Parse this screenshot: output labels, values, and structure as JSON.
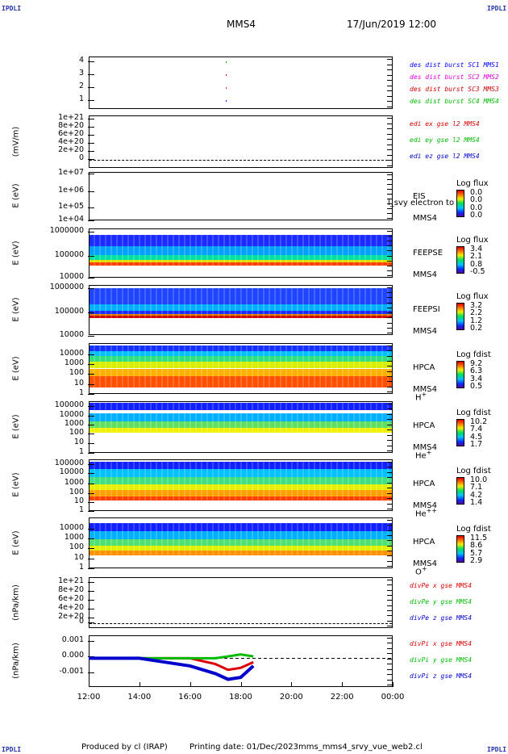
{
  "corner_label": "IPDLI",
  "header": {
    "spacecraft": "MMS4",
    "datetime": "17/Jun/2019 12:00"
  },
  "colors": {
    "mms1": "#0000ff",
    "mms2": "#e000e0",
    "mms3": "#cc0000",
    "mms4": "#00bb00",
    "x": "#dd0000",
    "y": "#00bb00",
    "z": "#0000cc"
  },
  "panels": [
    {
      "id": "burst",
      "ylabel": "",
      "ticks": [
        "4",
        "3",
        "2",
        "1"
      ],
      "legend": [
        "des dist burst SC1 MMS1",
        "des dist burst SC2 MMS2",
        "des dist burst SC3 MMS3",
        "des dist burst SC4 MMS4"
      ]
    },
    {
      "id": "edi",
      "ylabel": "(mV/m)",
      "ticks": [
        "1e+21",
        "8e+20",
        "6e+20",
        "4e+20",
        "2e+20",
        "0"
      ],
      "legend": [
        "edi ex gse l2 MMS4",
        "edi ey gse l2 MMS4",
        "edi ez gse l2 MMS4"
      ]
    },
    {
      "id": "eis",
      "ylabel": "E (eV)",
      "ticks": [
        "1e+07",
        "1e+06",
        "1e+05",
        "1e+04"
      ],
      "instrument": [
        "EIS",
        "MMS4"
      ],
      "overlay": "l_svy electron to",
      "cb_title": "Log flux",
      "cb_values": [
        "0.0",
        "0.0",
        "0.0",
        "0.0"
      ]
    },
    {
      "id": "feepse",
      "ylabel": "E (eV)",
      "ticks": [
        "1000000",
        "100000",
        "10000"
      ],
      "instrument": [
        "FEEPSE",
        "MMS4"
      ],
      "cb_title": "Log flux",
      "cb_values": [
        "3.4",
        "2.1",
        "0.8",
        "-0.5"
      ]
    },
    {
      "id": "feepsi",
      "ylabel": "E (eV)",
      "ticks": [
        "1000000",
        "100000",
        "10000"
      ],
      "instrument": [
        "FEEPSI",
        "MMS4"
      ],
      "cb_title": "Log flux",
      "cb_values": [
        "3.2",
        "2.2",
        "1.2",
        "0.2"
      ]
    },
    {
      "id": "hpca_h",
      "ylabel": "E (eV)",
      "ticks": [
        "10000",
        "1000",
        "100",
        "10",
        "1"
      ],
      "instrument": [
        "HPCA",
        "MMS4"
      ],
      "species": "H",
      "species_sup": "+",
      "cb_title": "Log fdist",
      "cb_values": [
        "9.2",
        "6.3",
        "3.4",
        "0.5"
      ]
    },
    {
      "id": "hpca_he",
      "ylabel": "E (eV)",
      "ticks": [
        "100000",
        "10000",
        "1000",
        "100",
        "10",
        "1"
      ],
      "instrument": [
        "HPCA",
        "MMS4"
      ],
      "species": "He",
      "species_sup": "+",
      "cb_title": "Log fdist",
      "cb_values": [
        "10.2",
        "7.4",
        "4.5",
        "1.7"
      ]
    },
    {
      "id": "hpca_hepp",
      "ylabel": "E (eV)",
      "ticks": [
        "100000",
        "10000",
        "1000",
        "100",
        "10",
        "1"
      ],
      "instrument": [
        "HPCA",
        "MMS4"
      ],
      "species": "He",
      "species_sup": "++",
      "cb_title": "Log fdist",
      "cb_values": [
        "10.0",
        "7.1",
        "4.2",
        "1.4"
      ]
    },
    {
      "id": "hpca_o",
      "ylabel": "E (eV)",
      "ticks": [
        "10000",
        "1000",
        "100",
        "10",
        "1"
      ],
      "instrument": [
        "HPCA",
        "MMS4"
      ],
      "species": "O",
      "species_sup": "+",
      "cb_title": "Log fdist",
      "cb_values": [
        "11.5",
        "8.6",
        "5.7",
        "2.9"
      ]
    },
    {
      "id": "divpe",
      "ylabel": "(nPa/km)",
      "ticks": [
        "1e+21",
        "8e+20",
        "6e+20",
        "4e+20",
        "2e+20",
        "0"
      ],
      "legend": [
        "divPe x gse MMS4",
        "divPe y gse MMS4",
        "divPe z gse MMS4"
      ]
    },
    {
      "id": "divpi",
      "ylabel": "(nPa/km)",
      "ticks": [
        "0.001",
        "0.000",
        "-0.001"
      ],
      "legend": [
        "divPi x gse MMS4",
        "divPi y gse MMS4",
        "divPi z gse MMS4"
      ]
    }
  ],
  "xaxis": {
    "ticks": [
      "12:00",
      "14:00",
      "16:00",
      "18:00",
      "20:00",
      "22:00",
      "00:00"
    ]
  },
  "footer": {
    "produced": "Produced by cl (IRAP)",
    "printing": "Printing date: 01/Dec/2023",
    "file": "mms_mms4_srvy_vue_web2.cl"
  },
  "chart_data": {
    "type": "line",
    "x": [
      "12:00",
      "14:00",
      "16:00",
      "18:00",
      "20:00",
      "22:00",
      "00:00"
    ],
    "xlim_hours": [
      12,
      24
    ],
    "panels_summary": [
      {
        "panel": "burst",
        "marks": [
          {
            "series": "MMS1",
            "y": 1,
            "hour": 17.4
          },
          {
            "series": "MMS2",
            "y": 2,
            "hour": 17.4
          },
          {
            "series": "MMS3",
            "y": 3,
            "hour": 17.4
          },
          {
            "series": "MMS4",
            "y": 4,
            "hour": 17.4
          }
        ]
      },
      {
        "panel": "divpi",
        "ylim": [
          -0.0015,
          0.0012
        ],
        "data_end_hour": 18.5,
        "series": [
          {
            "name": "divPi x gse MMS4",
            "hours": [
              12,
              13,
              14,
              15,
              16,
              17,
              17.5,
              18,
              18.5
            ],
            "values": [
              0.0,
              0.0,
              0.0,
              0.0,
              0.0,
              -0.0003,
              -0.0006,
              -0.0005,
              -0.0002
            ]
          },
          {
            "name": "divPi y gse MMS4",
            "hours": [
              12,
              13,
              14,
              15,
              16,
              17,
              17.5,
              18,
              18.5
            ],
            "values": [
              0.0,
              0.0,
              0.0,
              0.0,
              0.0,
              0.0,
              0.0001,
              0.0002,
              0.0001
            ]
          },
          {
            "name": "divPi z gse MMS4",
            "hours": [
              12,
              13,
              14,
              15,
              16,
              17,
              17.5,
              18,
              18.5
            ],
            "values": [
              0.0,
              0.0,
              0.0,
              -0.0002,
              -0.0004,
              -0.0008,
              -0.0011,
              -0.001,
              -0.0004
            ]
          }
        ]
      }
    ]
  }
}
